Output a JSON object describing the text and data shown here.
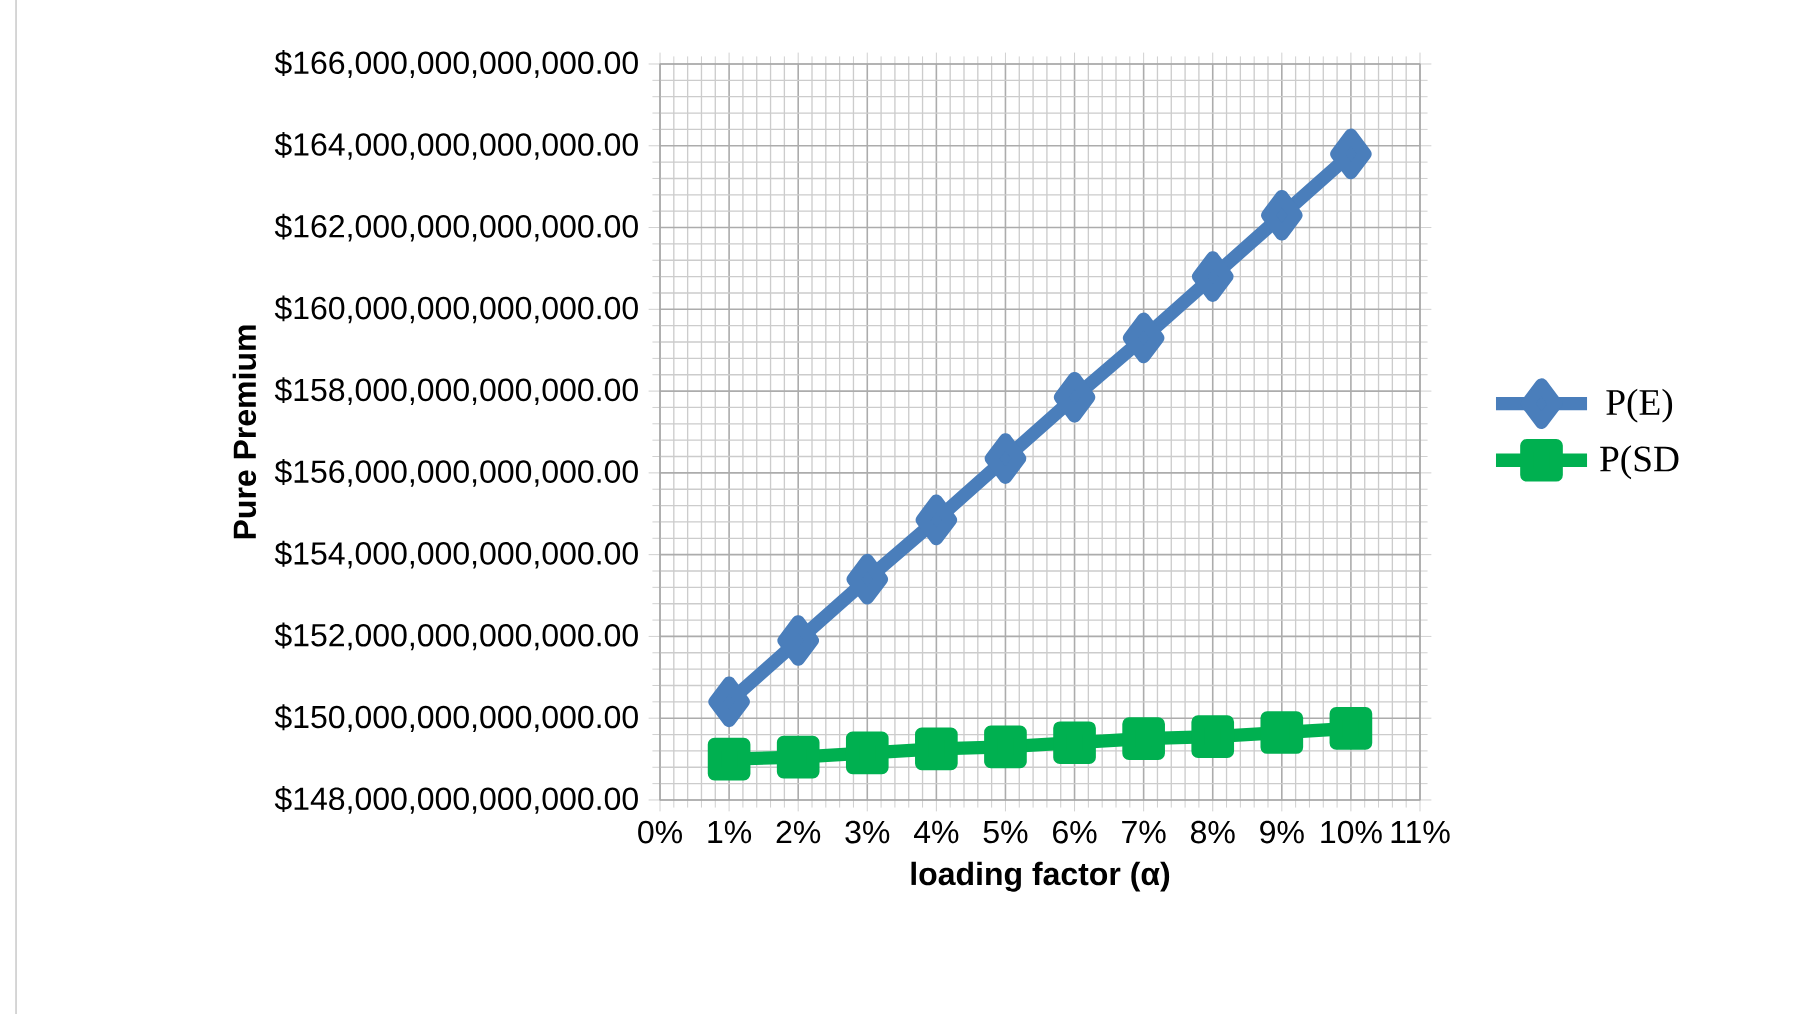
{
  "chart_data": {
    "type": "line",
    "xlabel": "loading factor (α)",
    "ylabel": "Pure Premium",
    "x": [
      1,
      2,
      3,
      4,
      5,
      6,
      7,
      8,
      9,
      10
    ],
    "series": [
      {
        "name": "P(E)",
        "color": "#4a7ebb",
        "marker": "diamond",
        "values": [
          150400000000000,
          151900000000000,
          153400000000000,
          154850000000000,
          156350000000000,
          157850000000000,
          159300000000000,
          160800000000000,
          162300000000000,
          163800000000000
        ]
      },
      {
        "name": "P(SD",
        "color": "#00b050",
        "marker": "square",
        "values": [
          149000000000000,
          149050000000000,
          149150000000000,
          149250000000000,
          149300000000000,
          149400000000000,
          149500000000000,
          149550000000000,
          149650000000000,
          149750000000000
        ]
      }
    ],
    "xlim": [
      0,
      11
    ],
    "xticks": [
      {
        "value": 0,
        "label": "0%"
      },
      {
        "value": 1,
        "label": "1%"
      },
      {
        "value": 2,
        "label": "2%"
      },
      {
        "value": 3,
        "label": "3%"
      },
      {
        "value": 4,
        "label": "4%"
      },
      {
        "value": 5,
        "label": "5%"
      },
      {
        "value": 6,
        "label": "6%"
      },
      {
        "value": 7,
        "label": "7%"
      },
      {
        "value": 8,
        "label": "8%"
      },
      {
        "value": 9,
        "label": "9%"
      },
      {
        "value": 10,
        "label": "10%"
      },
      {
        "value": 11,
        "label": "11%"
      }
    ],
    "ylim": [
      148000000000000,
      166000000000000
    ],
    "yticks": [
      {
        "value": 148000000000000,
        "label": "$148,000,000,000,000.00"
      },
      {
        "value": 150000000000000,
        "label": "$150,000,000,000,000.00"
      },
      {
        "value": 152000000000000,
        "label": "$152,000,000,000,000.00"
      },
      {
        "value": 154000000000000,
        "label": "$154,000,000,000,000.00"
      },
      {
        "value": 156000000000000,
        "label": "$156,000,000,000,000.00"
      },
      {
        "value": 158000000000000,
        "label": "$158,000,000,000,000.00"
      },
      {
        "value": 160000000000000,
        "label": "$160,000,000,000,000.00"
      },
      {
        "value": 162000000000000,
        "label": "$162,000,000,000,000.00"
      },
      {
        "value": 164000000000000,
        "label": "$164,000,000,000,000.00"
      },
      {
        "value": 166000000000000,
        "label": "$166,000,000,000,000.00"
      }
    ],
    "grid": true,
    "legend": "right",
    "line_style": "solid"
  }
}
